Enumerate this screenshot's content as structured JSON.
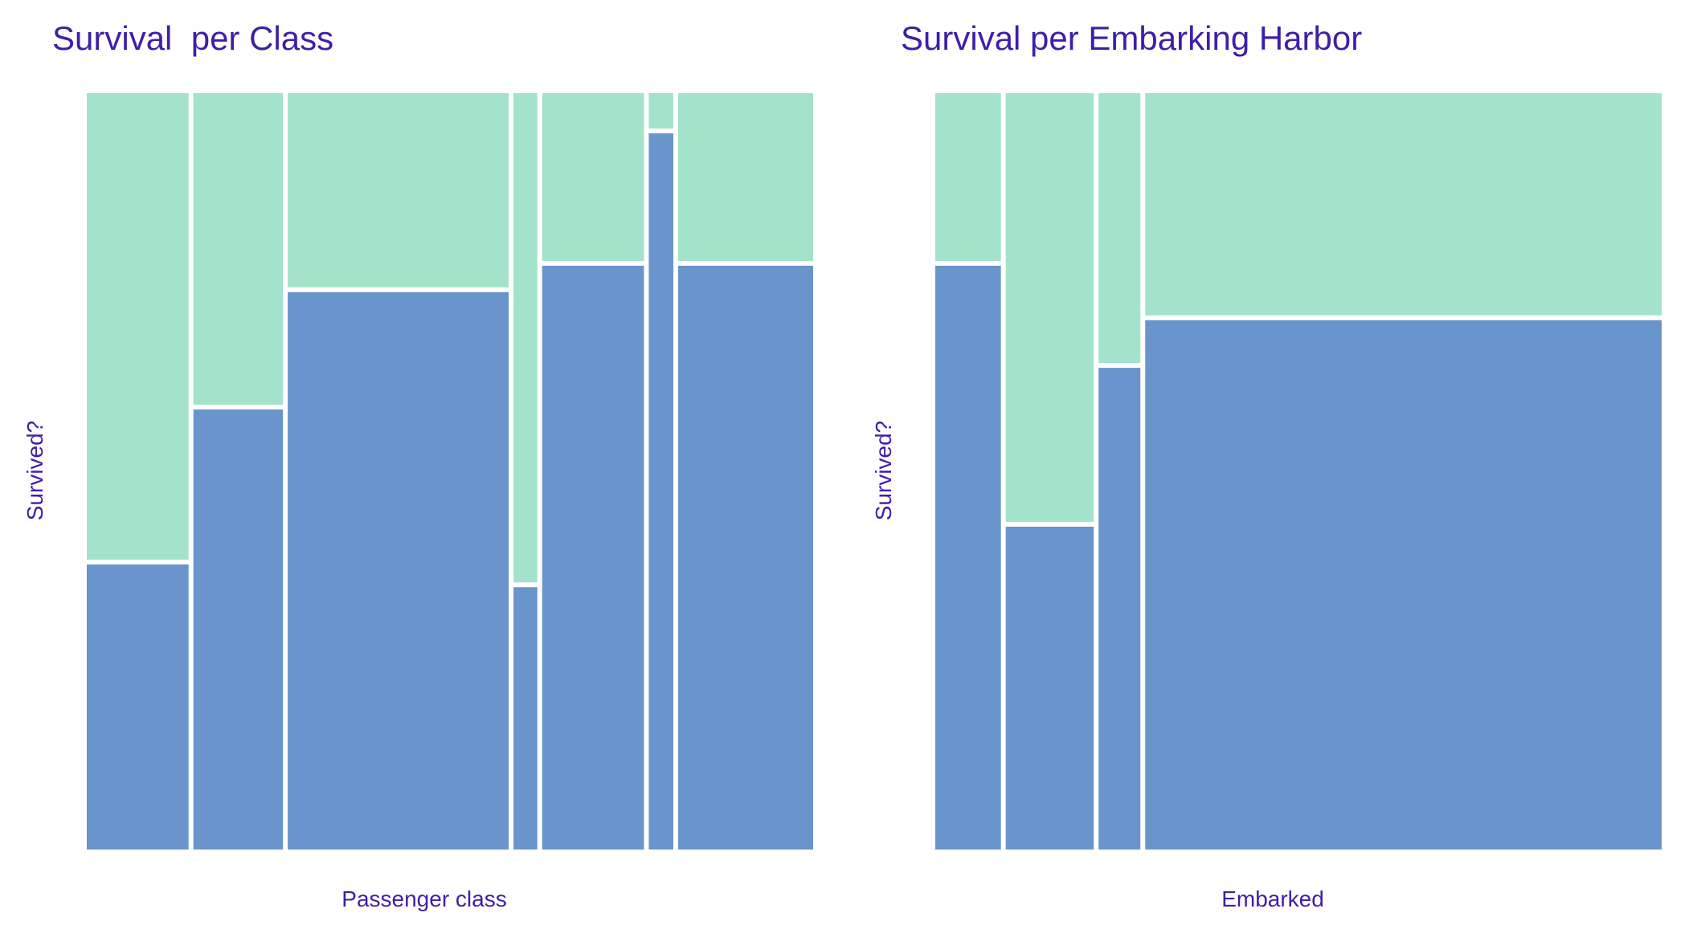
{
  "colors": {
    "survived": "#a3e3cb",
    "not_survived": "#6994cc",
    "text": "#3d1fa8",
    "gap": "#ffffff"
  },
  "chart_data": [
    {
      "type": "mosaic",
      "title": "Survival  per Class",
      "xlabel": "Passenger class",
      "ylabel": "Survived?",
      "columns": [
        {
          "width_fraction": 0.141,
          "not_survived_fraction": 0.38
        },
        {
          "width_fraction": 0.124,
          "not_survived_fraction": 0.585
        },
        {
          "width_fraction": 0.306,
          "not_survived_fraction": 0.74
        },
        {
          "width_fraction": 0.033,
          "not_survived_fraction": 0.35
        },
        {
          "width_fraction": 0.141,
          "not_survived_fraction": 0.775
        },
        {
          "width_fraction": 0.034,
          "not_survived_fraction": 0.95
        },
        {
          "width_fraction": 0.187,
          "not_survived_fraction": 0.775
        }
      ]
    },
    {
      "type": "mosaic",
      "title": "Survival per Embarking Harbor",
      "xlabel": "Embarked",
      "ylabel": "Survived?",
      "columns": [
        {
          "width_fraction": 0.091,
          "not_survived_fraction": 0.775
        },
        {
          "width_fraction": 0.122,
          "not_survived_fraction": 0.43
        },
        {
          "width_fraction": 0.058,
          "not_survived_fraction": 0.64
        },
        {
          "width_fraction": 0.716,
          "not_survived_fraction": 0.703
        }
      ]
    }
  ]
}
